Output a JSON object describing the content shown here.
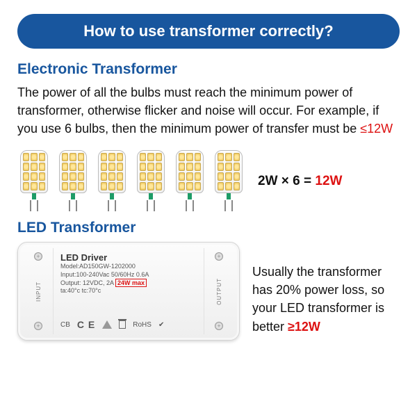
{
  "banner": {
    "title": "How to use transformer correctly?"
  },
  "section1": {
    "heading": "Electronic Transformer",
    "body_pre": "The power of all the bulbs must reach the minimum power of transformer, otherwise flicker and noise will occur. For example, if you use 6 bulbs, then the minimum power of transfer must be ",
    "body_red": "≤12W",
    "bulb_count": 6,
    "equation_left": "2W × 6 = ",
    "equation_red": "12W"
  },
  "section2": {
    "heading": "LED Transformer",
    "driver": {
      "title": "LED Driver",
      "model": "Model:AD150GW-1202000",
      "input": "Input:100-240Vac 50/60Hz 0.6A",
      "output_prefix": "Output: 12VDC, 2A ",
      "output_boxed": "24W max",
      "temps": "ta:40°c    tc:70°c",
      "input_label": "INPUT",
      "output_label": "OUTPUT",
      "cert_cb": "CB",
      "cert_ce": "C E",
      "cert_rohs": "RoHS"
    },
    "note_pre": "Usually the transformer has 20% power loss, so your LED transformer is better ",
    "note_red": "≥12W"
  },
  "colors": {
    "brand_blue": "#18569e",
    "accent_red": "#d11",
    "bg": "#ffffff"
  }
}
